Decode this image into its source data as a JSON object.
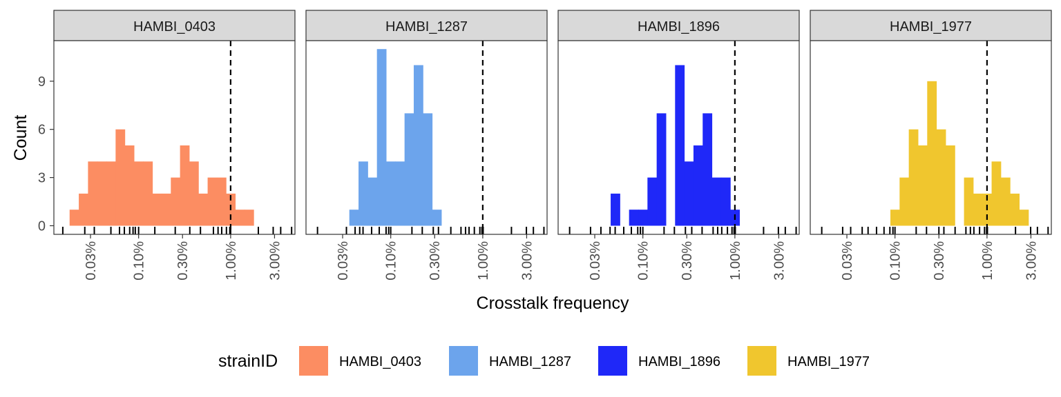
{
  "chart_data": {
    "type": "histogram",
    "facet_by": "strainID",
    "xlabel": "Crosstalk frequency",
    "ylabel": "Count",
    "x_scale": "log10",
    "xlim": [
      0.00012,
      0.05
    ],
    "ylim": [
      0,
      11
    ],
    "x_ticks": [
      0.0003,
      0.001,
      0.003,
      0.01,
      0.03
    ],
    "x_tick_labels": [
      "0.03%",
      "0.10%",
      "0.30%",
      "1.00%",
      "3.00%"
    ],
    "y_ticks": [
      0,
      3,
      6,
      9
    ],
    "y_tick_labels": [
      "0",
      "3",
      "6",
      "9"
    ],
    "reference_line": {
      "x": 0.01,
      "style": "dashed"
    },
    "bin_width_log10": 0.1,
    "grid": false,
    "legend": {
      "title": "strainID",
      "position": "bottom",
      "entries": [
        "HAMBI_0403",
        "HAMBI_1287",
        "HAMBI_1896",
        "HAMBI_1977"
      ]
    },
    "panels": [
      {
        "name": "HAMBI_0403",
        "color": "#FC8D62",
        "bin_start_log10": -3.75,
        "counts": [
          1,
          2,
          4,
          4,
          4,
          6,
          5,
          4,
          4,
          2,
          2,
          3,
          5,
          4,
          2,
          3,
          3,
          2,
          1,
          1
        ]
      },
      {
        "name": "HAMBI_1287",
        "color": "#6CA4EC",
        "bin_start_log10": -3.45,
        "counts": [
          1,
          4,
          3,
          11,
          4,
          4,
          7,
          10,
          7,
          1
        ]
      },
      {
        "name": "HAMBI_1896",
        "color": "#1F28F8",
        "bin_start_log10": -3.35,
        "counts": [
          2,
          0,
          1,
          1,
          3,
          7,
          0,
          10,
          4,
          5,
          7,
          3,
          3,
          1
        ]
      },
      {
        "name": "HAMBI_1977",
        "color": "#F0C62E",
        "bin_start_log10": -3.05,
        "counts": [
          1,
          3,
          6,
          5,
          9,
          6,
          5,
          0,
          3,
          2,
          2,
          4,
          3,
          2,
          1
        ]
      }
    ],
    "rug": [
      [
        0.00015,
        0.00026,
        0.00033,
        0.0005,
        0.00062,
        0.0007,
        0.0008,
        0.00087,
        0.00092,
        0.001,
        0.0015,
        0.0025,
        0.0036,
        0.0047,
        0.0065,
        0.0073,
        0.008,
        0.009,
        0.0098,
        0.01,
        0.02,
        0.029,
        0.035,
        0.046
      ],
      [
        0.00016,
        0.00033,
        0.00041,
        0.00046,
        0.0005,
        0.00062,
        0.00075,
        0.00089,
        0.00095,
        0.001,
        0.0017,
        0.0022,
        0.0029,
        0.0033,
        0.0045,
        0.0058,
        0.0065,
        0.0071,
        0.0081,
        0.0093,
        0.0098,
        0.0101,
        0.0205,
        0.0298,
        0.0355,
        0.0462
      ],
      [
        0.00016,
        0.00027,
        0.00035,
        0.00044,
        0.0005,
        0.00062,
        0.00075,
        0.00088,
        0.00094,
        0.001,
        0.0017,
        0.0022,
        0.0029,
        0.0034,
        0.0044,
        0.0058,
        0.0065,
        0.0072,
        0.0083,
        0.0093,
        0.0098,
        0.0101,
        0.0205,
        0.0297,
        0.0353,
        0.0463
      ],
      [
        0.00016,
        0.00027,
        0.00033,
        0.00044,
        0.00051,
        0.00063,
        0.00076,
        0.00088,
        0.00095,
        0.001,
        0.0017,
        0.0022,
        0.003,
        0.0034,
        0.0045,
        0.0059,
        0.0066,
        0.0072,
        0.0083,
        0.0094,
        0.0099,
        0.0101,
        0.0204,
        0.0298,
        0.0353,
        0.0461
      ]
    ]
  }
}
